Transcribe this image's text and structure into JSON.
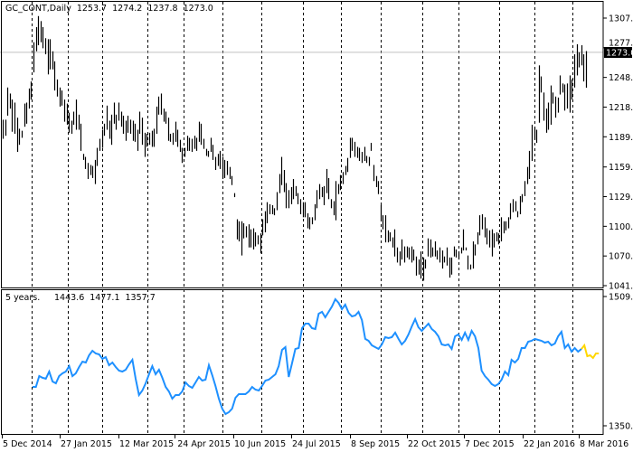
{
  "chart_data": [
    {
      "type": "bar",
      "bar_style": "ohlc-high-low",
      "title": "GC_CONT,Daily",
      "ohlc_readout": {
        "open": "1253.7",
        "high": "1274.2",
        "low": "1237.8",
        "close": "1273.0"
      },
      "current_price_label": "1273.0",
      "ylim": [
        1041.0,
        1307.0
      ],
      "y_tick_labels": [
        "1307.0",
        "1277.5",
        "1248.0",
        "1218.5",
        "1189.0",
        "1159.0",
        "1129.5",
        "1100.0",
        "1070.5",
        "1041.0"
      ],
      "x_tick_labels": [
        "5 Dec 2014",
        "27 Jan 2015",
        "12 Mar 2015",
        "24 Apr 2015",
        "10 Jun 2015",
        "24 Jul 2015",
        "8 Sep 2015",
        "22 Oct 2015",
        "7 Dec 2015",
        "22 Jan 2016",
        "8 Mar 2016"
      ],
      "grid": "vertical dashed",
      "bars_high_low": [
        [
          1206,
          1187
        ],
        [
          1206,
          1190
        ],
        [
          1238,
          1210
        ],
        [
          1232,
          1217
        ],
        [
          1226,
          1194
        ],
        [
          1223,
          1192
        ],
        [
          1208,
          1174
        ],
        [
          1197,
          1181
        ],
        [
          1195,
          1188
        ],
        [
          1222,
          1199
        ],
        [
          1223,
          1202
        ],
        [
          1237,
          1217
        ],
        [
          1244,
          1226
        ],
        [
          1283,
          1253
        ],
        [
          1298,
          1274
        ],
        [
          1309,
          1280
        ],
        [
          1304,
          1283
        ],
        [
          1298,
          1277
        ],
        [
          1287,
          1271
        ],
        [
          1286,
          1251
        ],
        [
          1286,
          1256
        ],
        [
          1274,
          1256
        ],
        [
          1264,
          1235
        ],
        [
          1246,
          1229
        ],
        [
          1238,
          1219
        ],
        [
          1235,
          1220
        ],
        [
          1226,
          1204
        ],
        [
          1222,
          1201
        ],
        [
          1213,
          1193
        ],
        [
          1205,
          1192
        ],
        [
          1214,
          1201
        ],
        [
          1226,
          1196
        ],
        [
          1211,
          1196
        ],
        [
          1202,
          1175
        ],
        [
          1172,
          1166
        ],
        [
          1169,
          1157
        ],
        [
          1163,
          1147
        ],
        [
          1161,
          1151
        ],
        [
          1160,
          1148
        ],
        [
          1166,
          1142
        ],
        [
          1178,
          1160
        ],
        [
          1187,
          1175
        ],
        [
          1196,
          1178
        ],
        [
          1202,
          1190
        ],
        [
          1220,
          1196
        ],
        [
          1205,
          1187
        ],
        [
          1211,
          1181
        ],
        [
          1223,
          1202
        ],
        [
          1211,
          1196
        ],
        [
          1223,
          1205
        ],
        [
          1214,
          1199
        ],
        [
          1210,
          1192
        ],
        [
          1205,
          1185
        ],
        [
          1210,
          1193
        ],
        [
          1206,
          1192
        ],
        [
          1205,
          1185
        ],
        [
          1202,
          1184
        ],
        [
          1196,
          1175
        ],
        [
          1214,
          1192
        ],
        [
          1208,
          1181
        ],
        [
          1193,
          1169
        ],
        [
          1192,
          1179
        ],
        [
          1193,
          1181
        ],
        [
          1195,
          1179
        ],
        [
          1197,
          1179
        ],
        [
          1219,
          1192
        ],
        [
          1229,
          1211
        ],
        [
          1232,
          1211
        ],
        [
          1217,
          1204
        ],
        [
          1214,
          1202
        ],
        [
          1208,
          1185
        ],
        [
          1192,
          1184
        ],
        [
          1193,
          1181
        ],
        [
          1204,
          1184
        ],
        [
          1196,
          1179
        ],
        [
          1186,
          1174
        ],
        [
          1178,
          1163
        ],
        [
          1178,
          1169
        ],
        [
          1190,
          1175
        ],
        [
          1188,
          1175
        ],
        [
          1187,
          1174
        ],
        [
          1190,
          1177
        ],
        [
          1188,
          1175
        ],
        [
          1204,
          1184
        ],
        [
          1202,
          1181
        ],
        [
          1187,
          1177
        ],
        [
          1177,
          1170
        ],
        [
          1175,
          1169
        ],
        [
          1188,
          1174
        ],
        [
          1181,
          1166
        ],
        [
          1169,
          1156
        ],
        [
          1172,
          1160
        ],
        [
          1175,
          1157
        ],
        [
          1169,
          1147
        ],
        [
          1166,
          1148
        ],
        [
          1165,
          1151
        ],
        [
          1159,
          1147
        ],
        [
          1150,
          1141
        ],
        [
          1133,
          1129
        ],
        [
          1107,
          1087
        ],
        [
          1105,
          1085
        ],
        [
          1105,
          1071
        ],
        [
          1103,
          1088
        ],
        [
          1100,
          1089
        ],
        [
          1102,
          1079
        ],
        [
          1097,
          1079
        ],
        [
          1098,
          1077
        ],
        [
          1094,
          1080
        ],
        [
          1091,
          1082
        ],
        [
          1093,
          1073
        ],
        [
          1107,
          1091
        ],
        [
          1115,
          1094
        ],
        [
          1124,
          1103
        ],
        [
          1122,
          1112
        ],
        [
          1121,
          1112
        ],
        [
          1118,
          1111
        ],
        [
          1134,
          1116
        ],
        [
          1152,
          1133
        ],
        [
          1169,
          1141
        ],
        [
          1156,
          1134
        ],
        [
          1143,
          1118
        ],
        [
          1136,
          1118
        ],
        [
          1139,
          1122
        ],
        [
          1147,
          1127
        ],
        [
          1140,
          1130
        ],
        [
          1133,
          1122
        ],
        [
          1127,
          1112
        ],
        [
          1124,
          1109
        ],
        [
          1124,
          1109
        ],
        [
          1113,
          1098
        ],
        [
          1109,
          1097
        ],
        [
          1109,
          1102
        ],
        [
          1122,
          1106
        ],
        [
          1136,
          1118
        ],
        [
          1142,
          1127
        ],
        [
          1139,
          1129
        ],
        [
          1140,
          1121
        ],
        [
          1157,
          1133
        ],
        [
          1148,
          1127
        ],
        [
          1127,
          1118
        ],
        [
          1125,
          1111
        ],
        [
          1145,
          1106
        ],
        [
          1142,
          1132
        ],
        [
          1151,
          1136
        ],
        [
          1154,
          1142
        ],
        [
          1160,
          1151
        ],
        [
          1168,
          1154
        ],
        [
          1188,
          1168
        ],
        [
          1188,
          1175
        ],
        [
          1184,
          1169
        ],
        [
          1179,
          1168
        ],
        [
          1178,
          1165
        ],
        [
          1174,
          1163
        ],
        [
          1179,
          1165
        ],
        [
          1170,
          1163
        ],
        [
          1169,
          1160
        ],
        [
          1183,
          1175
        ],
        [
          1161,
          1145
        ],
        [
          1150,
          1139
        ],
        [
          1145,
          1132
        ],
        [
          1121,
          1105
        ],
        [
          1111,
          1097
        ],
        [
          1111,
          1084
        ],
        [
          1096,
          1084
        ],
        [
          1094,
          1085
        ],
        [
          1089,
          1079
        ],
        [
          1097,
          1070
        ],
        [
          1079,
          1064
        ],
        [
          1075,
          1061
        ],
        [
          1087,
          1067
        ],
        [
          1080,
          1064
        ],
        [
          1080,
          1069
        ],
        [
          1079,
          1067
        ],
        [
          1080,
          1064
        ],
        [
          1077,
          1066
        ],
        [
          1070,
          1051
        ],
        [
          1067,
          1052
        ],
        [
          1075,
          1048
        ],
        [
          1069,
          1046
        ],
        [
          1067,
          1058
        ],
        [
          1088,
          1070
        ],
        [
          1087,
          1069
        ],
        [
          1079,
          1070
        ],
        [
          1085,
          1070
        ],
        [
          1076,
          1067
        ],
        [
          1079,
          1064
        ],
        [
          1076,
          1058
        ],
        [
          1070,
          1064
        ],
        [
          1079,
          1061
        ],
        [
          1069,
          1049
        ],
        [
          1069,
          1052
        ],
        [
          1080,
          1070
        ],
        [
          1077,
          1069
        ],
        [
          1075,
          1067
        ],
        [
          1079,
          1073
        ],
        [
          1097,
          1076
        ],
        [
          1079,
          1076
        ],
        [
          1071,
          1057
        ],
        [
          1062,
          1057
        ],
        [
          1085,
          1058
        ],
        [
          1082,
          1071
        ],
        [
          1094,
          1082
        ],
        [
          1111,
          1091
        ],
        [
          1112,
          1097
        ],
        [
          1109,
          1089
        ],
        [
          1098,
          1082
        ],
        [
          1096,
          1079
        ],
        [
          1097,
          1070
        ],
        [
          1093,
          1079
        ],
        [
          1094,
          1085
        ],
        [
          1093,
          1082
        ],
        [
          1109,
          1085
        ],
        [
          1105,
          1093
        ],
        [
          1105,
          1096
        ],
        [
          1109,
          1098
        ],
        [
          1123,
          1107
        ],
        [
          1127,
          1114
        ],
        [
          1125,
          1115
        ],
        [
          1115,
          1109
        ],
        [
          1130,
          1112
        ],
        [
          1132,
          1124
        ],
        [
          1145,
          1130
        ],
        [
          1159,
          1142
        ],
        [
          1175,
          1147
        ],
        [
          1201,
          1165
        ],
        [
          1199,
          1186
        ],
        [
          1196,
          1183
        ],
        [
          1260,
          1203
        ],
        [
          1249,
          1233
        ],
        [
          1233,
          1205
        ],
        [
          1217,
          1193
        ],
        [
          1223,
          1196
        ],
        [
          1240,
          1201
        ],
        [
          1233,
          1222
        ],
        [
          1229,
          1208
        ],
        [
          1228,
          1213
        ],
        [
          1250,
          1231
        ],
        [
          1242,
          1233
        ],
        [
          1241,
          1215
        ],
        [
          1242,
          1217
        ],
        [
          1250,
          1213
        ],
        [
          1246,
          1226
        ],
        [
          1271,
          1238
        ],
        [
          1281,
          1250
        ],
        [
          1273,
          1258
        ],
        [
          1280,
          1260
        ],
        [
          1271,
          1244
        ],
        [
          1274.2,
          1237.8
        ]
      ],
      "colors": {
        "bars": "#000000",
        "current_price_line": "#c0c0c0",
        "price_label_bg": "#000000"
      }
    },
    {
      "type": "line",
      "title": "5 years.",
      "readout": [
        "1443.6",
        "1477.1",
        "1357.7"
      ],
      "ylim": [
        1350.4,
        1509.7
      ],
      "y_tick_labels": [
        "1509.7",
        "1350.4"
      ],
      "series": [
        {
          "color": "#1e90ff",
          "values": [
            1398.3,
            1398.3,
            1411.7,
            1409.5,
            1408.4,
            1417.2,
            1405.0,
            1402.8,
            1411.7,
            1415.0,
            1417.2,
            1423.9,
            1411.7,
            1415.0,
            1422.8,
            1429.5,
            1428.4,
            1437.3,
            1442.9,
            1439.5,
            1438.4,
            1432.8,
            1435.1,
            1425.0,
            1428.4,
            1422.8,
            1418.4,
            1417.2,
            1419.5,
            1426.2,
            1431.7,
            1408.4,
            1388.3,
            1393.9,
            1402.8,
            1413.9,
            1423.9,
            1413.9,
            1419.5,
            1409.5,
            1398.3,
            1392.7,
            1383.8,
            1388.3,
            1388.3,
            1392.7,
            1403.9,
            1399.4,
            1397.2,
            1403.9,
            1410.6,
            1406.1,
            1407.2,
            1425.0,
            1412.8,
            1399.4,
            1383.8,
            1371.6,
            1364.9,
            1367.1,
            1371.6,
            1384.9,
            1389.4,
            1389.4,
            1389.4,
            1392.7,
            1398.3,
            1395.0,
            1393.9,
            1399.4,
            1406.1,
            1407.2,
            1410.6,
            1413.9,
            1423.9,
            1443.9,
            1447.3,
            1410.6,
            1427.3,
            1445.1,
            1446.2,
            1470.7,
            1476.3,
            1476.3,
            1470.7,
            1469.6,
            1488.5,
            1490.8,
            1484.1,
            1490.8,
            1497.4,
            1506.4,
            1501.9,
            1494.1,
            1499.7,
            1489.7,
            1485.2,
            1486.3,
            1490.8,
            1480.7,
            1457.4,
            1455.1,
            1449.6,
            1447.3,
            1445.1,
            1450.7,
            1459.6,
            1458.5,
            1459.6,
            1465.1,
            1457.4,
            1450.7,
            1455.1,
            1462.9,
            1472.9,
            1481.9,
            1471.8,
            1467.4,
            1471.8,
            1476.3,
            1469.6,
            1466.3,
            1460.7,
            1450.7,
            1449.6,
            1450.7,
            1445.1,
            1460.7,
            1462.9,
            1456.2,
            1465.1,
            1456.2,
            1467.4,
            1460.7,
            1446.2,
            1418.4,
            1411.7,
            1407.2,
            1401.7,
            1399.4,
            1401.7,
            1407.2,
            1417.2,
            1412.8,
            1431.7,
            1428.4,
            1432.8,
            1446.2,
            1446.2,
            1454.0,
            1455.1,
            1457.4,
            1456.2,
            1455.1,
            1452.9,
            1454.0,
            1449.6,
            1451.8,
            1460.7,
            1466.3,
            1446.2,
            1450.7,
            1441.7,
            1446.2,
            1441.7,
            1445.1
          ]
        },
        {
          "color": "#ffd700",
          "values": [
            1445.1,
            1449.6,
            1436.2,
            1437.3,
            1433.9,
            1439.5,
            1439.5
          ]
        }
      ]
    }
  ]
}
